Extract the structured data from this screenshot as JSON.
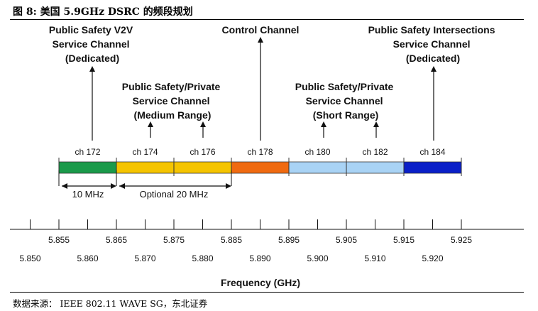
{
  "figure": {
    "title": "图 8: 美国 5.9GHz DSRC 的频段规划",
    "source": "数据来源： IEEE 802.11 WAVE SG，东北证券"
  },
  "labels": {
    "v2v": [
      "Public Safety V2V",
      "Service Channel",
      "(Dedicated)"
    ],
    "control": [
      "Control Channel"
    ],
    "medium": [
      "Public Safety/Private",
      "Service Channel",
      "(Medium Range)"
    ],
    "short": [
      "Public Safety/Private",
      "Service Channel",
      "(Short Range)"
    ],
    "intersections": [
      "Public Safety Intersections",
      "Service Channel",
      "(Dedicated)"
    ]
  },
  "channels": [
    {
      "name": "ch 172",
      "start": 5.855,
      "end": 5.865,
      "color": "#1a9a4a"
    },
    {
      "name": "ch 174",
      "start": 5.865,
      "end": 5.875,
      "color": "#f5c400"
    },
    {
      "name": "ch 176",
      "start": 5.875,
      "end": 5.885,
      "color": "#f5c400"
    },
    {
      "name": "ch 178",
      "start": 5.885,
      "end": 5.895,
      "color": "#f06a10"
    },
    {
      "name": "ch 180",
      "start": 5.895,
      "end": 5.905,
      "color": "#a9d3f5"
    },
    {
      "name": "ch 182",
      "start": 5.905,
      "end": 5.915,
      "color": "#a9d3f5"
    },
    {
      "name": "ch 184",
      "start": 5.915,
      "end": 5.925,
      "color": "#0a1fc8"
    }
  ],
  "bandwidths": {
    "ten": {
      "label": "10 MHz",
      "from": 5.855,
      "to": 5.865
    },
    "twenty": {
      "label": "Optional 20 MHz",
      "from": 5.865,
      "to": 5.885
    }
  },
  "axis": {
    "title": "Frequency (GHz)",
    "upper_ticks": [
      "5.855",
      "5.865",
      "5.875",
      "5.885",
      "5.895",
      "5.905",
      "5.915",
      "5.925"
    ],
    "lower_ticks": [
      "5.850",
      "5.860",
      "5.870",
      "5.880",
      "5.890",
      "5.900",
      "5.910",
      "5.920"
    ]
  }
}
